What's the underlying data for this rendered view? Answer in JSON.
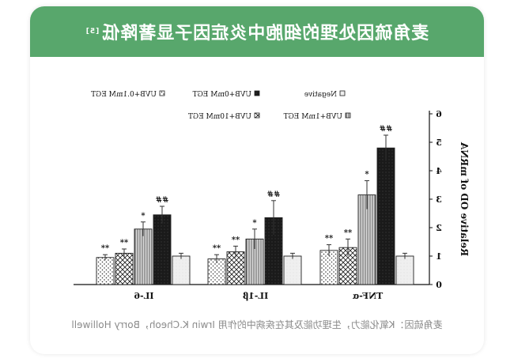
{
  "header": {
    "title": "麦角硫因处理的细胞中炎症因子显著降低",
    "ref": "[5]"
  },
  "footer": {
    "source": "麦角硫因：K氧化能力，生理功能及其在疾病中的作用 Irwin K.Cheoh，Borry Holliwell"
  },
  "colors": {
    "banner": "#58a76c",
    "bar_edge": "#222222",
    "black_bar": "#1a1a1a",
    "text": "#111111"
  },
  "chart_data": {
    "type": "bar",
    "mirrored": true,
    "ylabel": "Relative OD of mRNA",
    "ylim": [
      0,
      6
    ],
    "yticks": [
      "0",
      "1",
      "2",
      "3",
      "4",
      "5",
      "6"
    ],
    "categories": [
      "TNF-α",
      "IL-1β",
      "IL-6"
    ],
    "series": [
      {
        "name": "Negative",
        "pattern": "plain-grey",
        "values": [
          1.0,
          1.0,
          1.0
        ],
        "errors": [
          0.1,
          0.1,
          0.1
        ],
        "marks": [
          "",
          "",
          ""
        ]
      },
      {
        "name": "UVB+0mM EGT",
        "pattern": "black",
        "values": [
          4.8,
          2.35,
          2.45
        ],
        "errors": [
          0.45,
          0.6,
          0.3
        ],
        "marks": [
          "##",
          "##",
          "##"
        ]
      },
      {
        "name": "UVB+1mM EGT",
        "pattern": "vertical-lines",
        "values": [
          3.15,
          1.6,
          1.95
        ],
        "errors": [
          0.5,
          0.35,
          0.25
        ],
        "marks": [
          "*",
          "*",
          "*"
        ]
      },
      {
        "name": "UVB+10mM EGT",
        "pattern": "crosshatch",
        "values": [
          1.3,
          1.15,
          1.1
        ],
        "errors": [
          0.3,
          0.2,
          0.15
        ],
        "marks": [
          "**",
          "**",
          "**"
        ]
      },
      {
        "name": "UVB+0.1mM EGT",
        "pattern": "dots",
        "values": [
          1.2,
          0.9,
          0.95
        ],
        "errors": [
          0.2,
          0.15,
          0.1
        ],
        "marks": [
          "**",
          "**",
          "**"
        ]
      }
    ],
    "legend_position": "top",
    "grid": false
  }
}
